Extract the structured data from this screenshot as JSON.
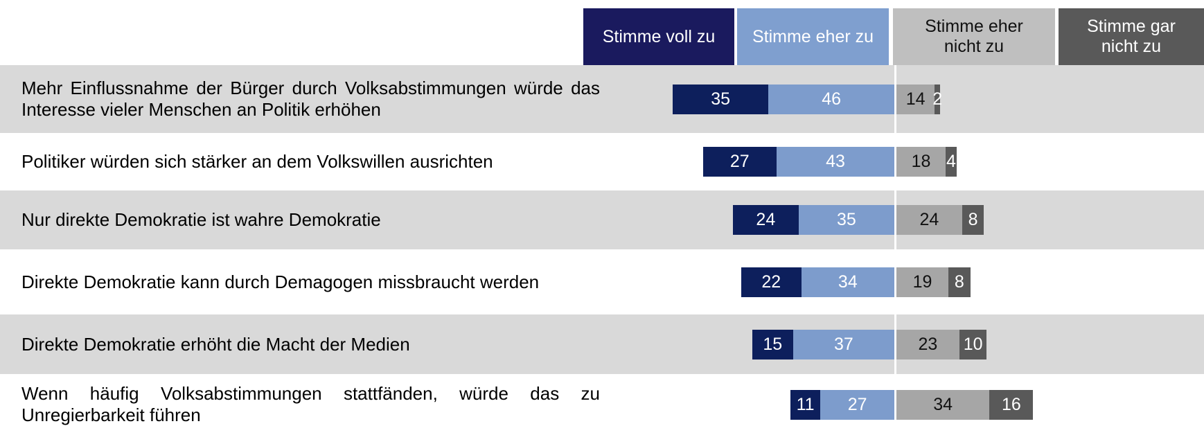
{
  "chart_data": {
    "type": "diverging_bar",
    "categories": [
      "Mehr Einflussnahme der Bürger durch Volksabstimmungen würde das Interesse vieler Menschen an Politik erhöhen",
      "Politiker würden sich stärker an dem Volkswillen ausrichten",
      "Nur direkte Demokratie ist wahre Demokratie",
      "Direkte Demokratie kann durch Demagogen missbraucht werden",
      "Direkte Demokratie erhöht die Macht der Medien",
      "Wenn häufig Volksabstimmungen stattfänden, würde das zu Unregierbarkeit führen"
    ],
    "series": [
      {
        "name": "Stimme voll zu",
        "color": "#0d1f5c",
        "values": [
          35,
          27,
          24,
          22,
          15,
          11
        ]
      },
      {
        "name": "Stimme eher zu",
        "color": "#7d9ccc",
        "values": [
          46,
          43,
          35,
          34,
          37,
          27
        ]
      },
      {
        "name": "Stimme eher nicht zu",
        "color": "#a6a6a6",
        "values": [
          14,
          18,
          24,
          19,
          23,
          34
        ]
      },
      {
        "name": "Stimme gar nicht zu",
        "color": "#595959",
        "values": [
          2,
          4,
          8,
          8,
          10,
          16
        ]
      }
    ]
  }
}
